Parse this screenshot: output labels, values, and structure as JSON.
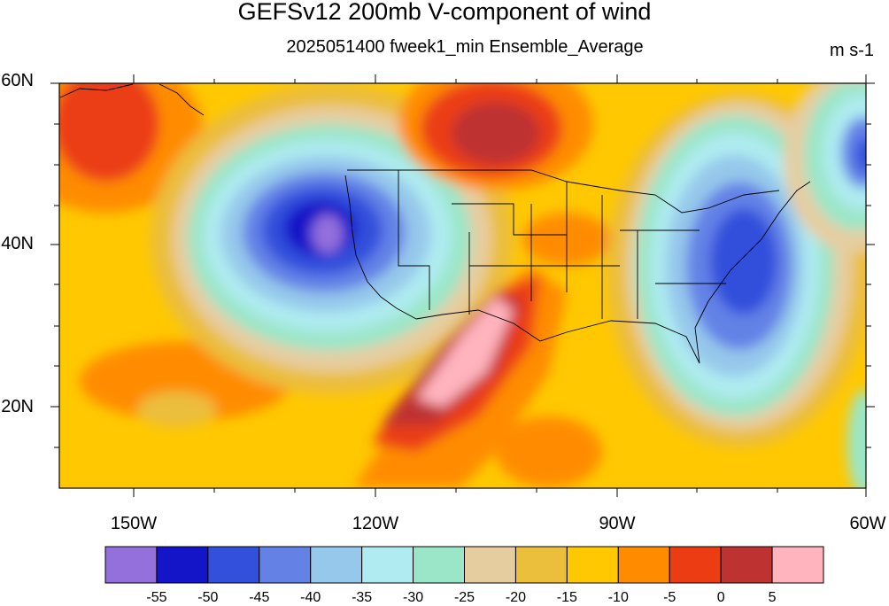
{
  "title": "GEFSv12 200mb V-component of wind",
  "subtitle": "2025051400 fweek1_min Ensemble_Average",
  "units": "m s-1",
  "lat_labels": [
    "60N",
    "40N",
    "20N"
  ],
  "lon_labels": [
    "150W",
    "120W",
    "90W",
    "60W"
  ],
  "colorbar": {
    "colors": [
      "#9370db",
      "#1414c8",
      "#3250dc",
      "#6482e6",
      "#96c8eb",
      "#afebf0",
      "#9be6c8",
      "#e6cda0",
      "#ebbe3c",
      "#ffc800",
      "#ff8c00",
      "#eb3c14",
      "#be3232",
      "#ffb4be"
    ],
    "labels": [
      "-55",
      "-50",
      "-45",
      "-40",
      "-35",
      "-30",
      "-25",
      "-20",
      "-15",
      "-10",
      "-5",
      "0",
      "5"
    ]
  },
  "chart_data": {
    "type": "heatmap",
    "variable": "V-component of wind",
    "level": "200mb",
    "units": "m s-1",
    "lat_range": [
      10,
      60
    ],
    "lon_range": [
      -160,
      -60
    ],
    "contour_levels": [
      -55,
      -50,
      -45,
      -40,
      -35,
      -30,
      -25,
      -20,
      -15,
      -10,
      -5,
      0,
      5
    ],
    "features": [
      {
        "lon": -129,
        "lat": 42,
        "level": -55
      },
      {
        "lon": -79,
        "lat": 38,
        "level": -45
      },
      {
        "lon": -64,
        "lat": 49,
        "level": -45
      },
      {
        "lon": -110,
        "lat": 28,
        "level": 5
      },
      {
        "lon": -112,
        "lat": 54,
        "level": 0
      },
      {
        "lon": -153,
        "lat": 56,
        "level": -5
      },
      {
        "lon": -148,
        "lat": 20,
        "level": -20
      }
    ]
  }
}
